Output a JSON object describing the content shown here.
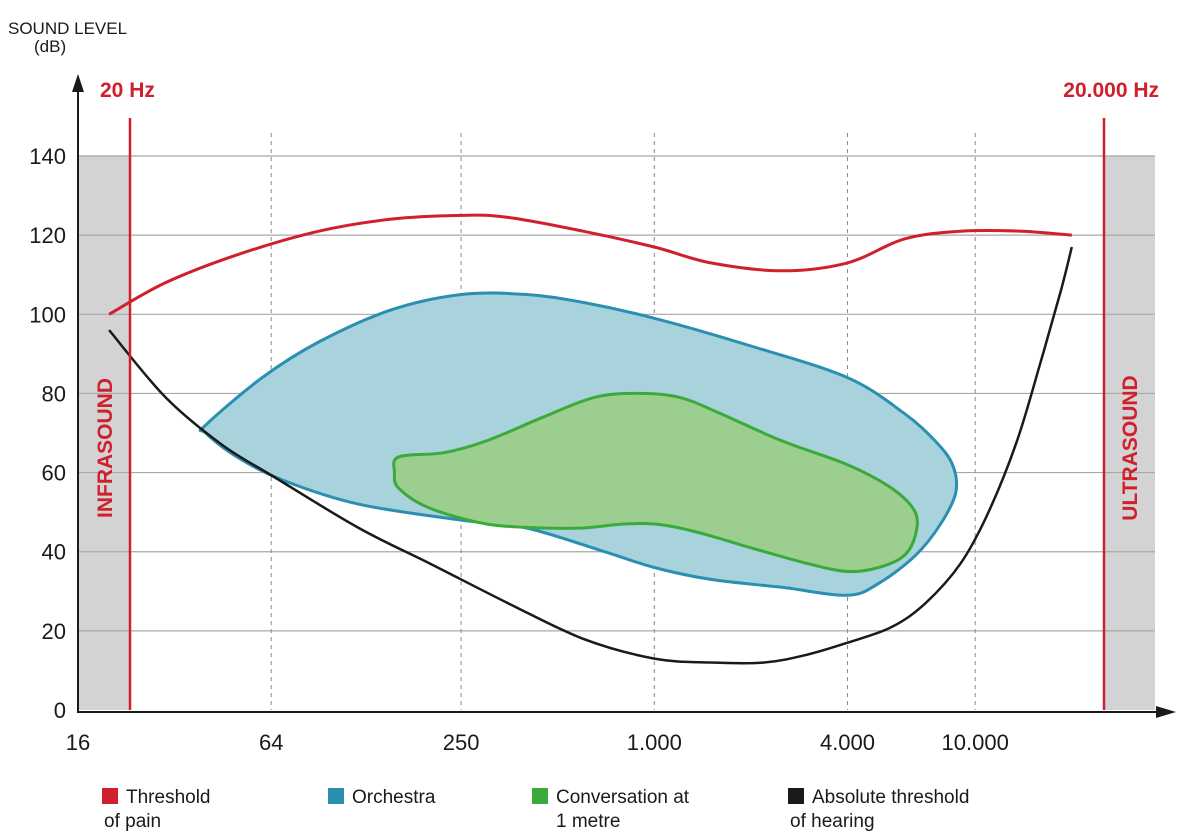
{
  "chart_data": {
    "type": "area",
    "ylabel_line1": "SOUND LEVEL",
    "ylabel_line2": "(dB)",
    "xlim": [
      16,
      16000
    ],
    "ylim": [
      0,
      140
    ],
    "x_ticks": [
      {
        "value": 16,
        "label": "16"
      },
      {
        "value": 64,
        "label": "64"
      },
      {
        "value": 250,
        "label": "250"
      },
      {
        "value": 1000,
        "label": "1.000"
      },
      {
        "value": 4000,
        "label": "4.000"
      },
      {
        "value": 10000,
        "label": "10.000"
      }
    ],
    "y_ticks": [
      0,
      20,
      40,
      60,
      80,
      100,
      120,
      140
    ],
    "x_scale": "log2-octaves",
    "grid": "horizontal solid, vertical dashed",
    "boundaries": [
      {
        "x": 20,
        "label": "20 Hz",
        "region_label": "INFRASOUND"
      },
      {
        "x": 20000,
        "label": "20.000 Hz",
        "region_label": "ULTRASOUND"
      }
    ],
    "colors": {
      "pain": "#d0202b",
      "orchestra_fill": "#a9d3dc",
      "orchestra_stroke": "#2a8fb0",
      "conversation_fill": "#9ccf8f",
      "conversation_stroke": "#3aaa3a",
      "hearing": "#1a1a1a",
      "outside_band": "#d3d3d5"
    },
    "series": [
      {
        "name": "Threshold of pain",
        "kind": "line",
        "points": [
          [
            20,
            100
          ],
          [
            30,
            108
          ],
          [
            50,
            115
          ],
          [
            90,
            121
          ],
          [
            150,
            124
          ],
          [
            250,
            125
          ],
          [
            350,
            124.5
          ],
          [
            600,
            121
          ],
          [
            1000,
            117
          ],
          [
            1500,
            113
          ],
          [
            2500,
            111
          ],
          [
            4000,
            113
          ],
          [
            6000,
            119
          ],
          [
            9000,
            121
          ],
          [
            14000,
            121
          ],
          [
            20000,
            120
          ]
        ]
      },
      {
        "name": "Orchestra",
        "kind": "area",
        "points": [
          [
            40,
            72
          ],
          [
            60,
            84
          ],
          [
            90,
            93
          ],
          [
            150,
            101
          ],
          [
            250,
            105
          ],
          [
            400,
            105
          ],
          [
            600,
            103
          ],
          [
            1000,
            99
          ],
          [
            2000,
            92
          ],
          [
            4000,
            84
          ],
          [
            6000,
            75
          ],
          [
            7500,
            68
          ],
          [
            8500,
            62
          ],
          [
            8700,
            55
          ],
          [
            7800,
            47
          ],
          [
            6500,
            39
          ],
          [
            5000,
            32
          ],
          [
            4000,
            29
          ],
          [
            2500,
            31
          ],
          [
            1500,
            33
          ],
          [
            1000,
            36
          ],
          [
            700,
            40
          ],
          [
            400,
            46
          ],
          [
            250,
            48
          ],
          [
            120,
            52
          ],
          [
            70,
            58
          ],
          [
            50,
            64
          ],
          [
            40,
            70
          ]
        ]
      },
      {
        "name": "Conversation at 1 metre",
        "kind": "area",
        "points": [
          [
            160,
            64
          ],
          [
            220,
            65
          ],
          [
            300,
            68
          ],
          [
            450,
            74
          ],
          [
            650,
            79
          ],
          [
            900,
            80
          ],
          [
            1200,
            79
          ],
          [
            1600,
            75
          ],
          [
            2500,
            68
          ],
          [
            4000,
            62
          ],
          [
            5500,
            56
          ],
          [
            6500,
            50
          ],
          [
            6500,
            44
          ],
          [
            6000,
            39
          ],
          [
            5000,
            36
          ],
          [
            4000,
            35
          ],
          [
            3000,
            37
          ],
          [
            2000,
            41
          ],
          [
            1500,
            44
          ],
          [
            1200,
            46
          ],
          [
            1000,
            47
          ],
          [
            800,
            47
          ],
          [
            600,
            46
          ],
          [
            450,
            46
          ],
          [
            300,
            47
          ],
          [
            200,
            51
          ],
          [
            160,
            56
          ],
          [
            155,
            60
          ]
        ]
      },
      {
        "name": "Absolute threshold of hearing",
        "kind": "line",
        "points": [
          [
            20,
            96
          ],
          [
            30,
            79
          ],
          [
            45,
            67
          ],
          [
            65,
            59
          ],
          [
            120,
            46
          ],
          [
            200,
            37
          ],
          [
            350,
            27
          ],
          [
            600,
            18
          ],
          [
            1000,
            13
          ],
          [
            1500,
            12
          ],
          [
            2200,
            12
          ],
          [
            3000,
            14
          ],
          [
            4000,
            17
          ],
          [
            5500,
            21
          ],
          [
            7000,
            27
          ],
          [
            9000,
            37
          ],
          [
            11000,
            50
          ],
          [
            13500,
            68
          ],
          [
            16000,
            88
          ],
          [
            18500,
            106
          ],
          [
            20000,
            117
          ]
        ]
      }
    ],
    "legend": [
      {
        "line1": "Threshold",
        "line2": "of pain",
        "color": "#d0202b"
      },
      {
        "line1": "Orchestra",
        "line2": "",
        "color": "#2a8fb0"
      },
      {
        "line1": "Conversation at",
        "line2": "1 metre",
        "color": "#3aaa3a"
      },
      {
        "line1": "Absolute threshold",
        "line2": "of hearing",
        "color": "#1a1a1a"
      }
    ]
  }
}
